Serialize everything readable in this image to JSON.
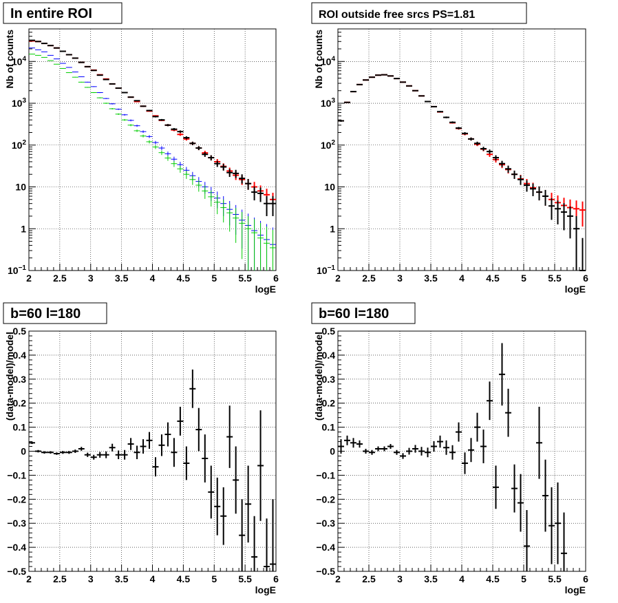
{
  "chart_data": [
    {
      "type": "scatter",
      "title": "In entire ROI",
      "xlabel": "logE",
      "ylabel": "Nb of counts",
      "xlim": [
        2,
        6
      ],
      "ylim": [
        0.1,
        60000
      ],
      "yscale": "log",
      "grid": true,
      "xtick_labels": [
        "2",
        "2.5",
        "3",
        "3.5",
        "4",
        "4.5",
        "5",
        "5.5",
        "6"
      ],
      "ytick_labels": [
        "10⁻¹",
        "1",
        "10",
        "10²",
        "10³",
        "10⁴"
      ],
      "series": [
        {
          "color": "#ff0000",
          "errors": "x-bin",
          "x": [
            2.05,
            2.15,
            2.25,
            2.35,
            2.45,
            2.55,
            2.65,
            2.75,
            2.85,
            2.95,
            3.05,
            3.15,
            3.25,
            3.35,
            3.45,
            3.55,
            3.65,
            3.75,
            3.85,
            3.95,
            4.05,
            4.15,
            4.25,
            4.35,
            4.45,
            4.55,
            4.65,
            4.75,
            4.85,
            4.95,
            5.05,
            5.15,
            5.25,
            5.35,
            5.45,
            5.55,
            5.65,
            5.75,
            5.85,
            5.95
          ],
          "y": [
            31000,
            30000,
            27000,
            24000,
            21000,
            17500,
            14500,
            12000,
            9500,
            7500,
            6200,
            4800,
            3800,
            2900,
            2300,
            1800,
            1400,
            1100,
            850,
            650,
            500,
            390,
            300,
            230,
            180,
            140,
            110,
            85,
            65,
            50,
            40,
            31,
            24,
            19,
            15,
            12,
            10,
            8,
            6.5,
            5
          ]
        },
        {
          "color": "#000000",
          "errors": "xy",
          "x": [
            2.05,
            2.15,
            2.25,
            2.35,
            2.45,
            2.55,
            2.65,
            2.75,
            2.85,
            2.95,
            3.05,
            3.15,
            3.25,
            3.35,
            3.45,
            3.55,
            3.65,
            3.75,
            3.85,
            3.95,
            4.05,
            4.15,
            4.25,
            4.35,
            4.45,
            4.55,
            4.65,
            4.75,
            4.85,
            4.95,
            5.05,
            5.15,
            5.25,
            5.35,
            5.45,
            5.55,
            5.65,
            5.75,
            5.85,
            5.95
          ],
          "y": [
            32000,
            30000,
            27000,
            24000,
            21000,
            17500,
            14500,
            12000,
            9500,
            7500,
            6100,
            4700,
            3700,
            2900,
            2300,
            1800,
            1400,
            1150,
            850,
            670,
            480,
            400,
            300,
            240,
            210,
            150,
            110,
            85,
            60,
            50,
            36,
            30,
            22,
            21,
            16,
            12,
            7.5,
            7,
            4,
            4
          ]
        },
        {
          "color": "#0000ff",
          "errors": "xy",
          "x": [
            2.05,
            2.15,
            2.25,
            2.35,
            2.45,
            2.55,
            2.65,
            2.75,
            2.85,
            2.95,
            3.05,
            3.15,
            3.25,
            3.35,
            3.45,
            3.55,
            3.65,
            3.75,
            3.85,
            3.95,
            4.05,
            4.15,
            4.25,
            4.35,
            4.45,
            4.55,
            4.65,
            4.75,
            4.85,
            4.95,
            5.05,
            5.15,
            5.25,
            5.35,
            5.45,
            5.55,
            5.65,
            5.75,
            5.85,
            5.95
          ],
          "y": [
            21000,
            19000,
            17000,
            14000,
            11500,
            9000,
            7200,
            5600,
            4300,
            3200,
            2500,
            1800,
            1300,
            970,
            720,
            530,
            390,
            290,
            210,
            160,
            115,
            85,
            62,
            46,
            34,
            25,
            18.5,
            13.5,
            10,
            7.3,
            5.4,
            4,
            2.9,
            2.2,
            1.6,
            1.2,
            0.9,
            0.7,
            0.55,
            0.42
          ]
        },
        {
          "color": "#00cc00",
          "errors": "xy",
          "x": [
            2.05,
            2.15,
            2.25,
            2.35,
            2.45,
            2.55,
            2.65,
            2.75,
            2.85,
            2.95,
            3.05,
            3.15,
            3.25,
            3.35,
            3.45,
            3.55,
            3.65,
            3.75,
            3.85,
            3.95,
            4.05,
            4.15,
            4.25,
            4.35,
            4.45,
            4.55,
            4.65,
            4.75,
            4.85,
            4.95,
            5.05,
            5.15,
            5.25,
            5.35,
            5.45,
            5.55,
            5.65,
            5.75,
            5.85,
            5.95
          ],
          "y": [
            15000,
            14000,
            12500,
            10500,
            8600,
            6800,
            5400,
            4200,
            3200,
            2400,
            1800,
            1350,
            1000,
            740,
            550,
            400,
            300,
            220,
            165,
            120,
            90,
            66,
            49,
            36,
            27,
            20,
            15,
            11,
            8,
            5.8,
            4.3,
            3.2,
            2.4,
            1.8,
            1.35,
            1,
            0.8,
            0.6,
            0.45,
            0.35
          ]
        }
      ]
    },
    {
      "type": "scatter",
      "title": "ROI outside free srcs PS=1.81",
      "xlabel": "logE",
      "ylabel": "Nb of counts",
      "xlim": [
        2,
        6
      ],
      "ylim": [
        0.1,
        60000
      ],
      "yscale": "log",
      "grid": true,
      "xtick_labels": [
        "2",
        "2.5",
        "3",
        "3.5",
        "4",
        "4.5",
        "5",
        "5.5",
        "6"
      ],
      "ytick_labels": [
        "10⁻¹",
        "1",
        "10",
        "10²",
        "10³",
        "10⁴"
      ],
      "series": [
        {
          "color": "#ff0000",
          "errors": "x-bin",
          "x": [
            2.05,
            2.15,
            2.25,
            2.35,
            2.45,
            2.55,
            2.65,
            2.75,
            2.85,
            2.95,
            3.05,
            3.15,
            3.25,
            3.35,
            3.45,
            3.55,
            3.65,
            3.75,
            3.85,
            3.95,
            4.05,
            4.15,
            4.25,
            4.35,
            4.45,
            4.55,
            4.65,
            4.75,
            4.85,
            4.95,
            5.05,
            5.15,
            5.25,
            5.35,
            5.45,
            5.55,
            5.65,
            5.75,
            5.85,
            5.95
          ],
          "y": [
            380,
            1050,
            1900,
            2800,
            3600,
            4200,
            4700,
            4800,
            4500,
            3900,
            3200,
            2600,
            2000,
            1500,
            1100,
            830,
            620,
            460,
            340,
            250,
            185,
            140,
            105,
            80,
            60,
            45,
            34,
            26,
            20,
            15.5,
            12,
            9.5,
            7.5,
            6,
            5,
            4.2,
            3.6,
            3.2,
            3,
            2.8
          ]
        },
        {
          "color": "#000000",
          "errors": "xy",
          "x": [
            2.05,
            2.15,
            2.25,
            2.35,
            2.45,
            2.55,
            2.65,
            2.75,
            2.85,
            2.95,
            3.05,
            3.15,
            3.25,
            3.35,
            3.45,
            3.55,
            3.65,
            3.75,
            3.85,
            3.95,
            4.05,
            4.15,
            4.25,
            4.35,
            4.45,
            4.55,
            4.65,
            4.75,
            4.85,
            4.95,
            5.05,
            5.15,
            5.25,
            5.35,
            5.45,
            5.55,
            5.65,
            5.75,
            5.85,
            5.95
          ],
          "y": [
            380,
            1050,
            1900,
            2800,
            3600,
            4200,
            4700,
            4800,
            4500,
            3900,
            3200,
            2600,
            2000,
            1500,
            1100,
            830,
            630,
            460,
            350,
            255,
            190,
            140,
            110,
            82,
            70,
            50,
            36,
            27,
            20,
            15,
            11,
            9,
            7.5,
            6,
            3.5,
            3,
            2.5,
            2,
            1,
            0.1
          ]
        }
      ]
    },
    {
      "type": "scatter",
      "title": "b=60 l=180",
      "xlabel": "logE",
      "ylabel": "(data-model)/model",
      "xlim": [
        2,
        6
      ],
      "ylim": [
        -0.5,
        0.5
      ],
      "grid": true,
      "xtick_labels": [
        "2",
        "2.5",
        "3",
        "3.5",
        "4",
        "4.5",
        "5",
        "5.5",
        "6"
      ],
      "ytick_labels": [
        "-0.5",
        "-0.4",
        "-0.3",
        "-0.2",
        "-0.1",
        "0",
        "0.1",
        "0.2",
        "0.3",
        "0.4",
        "0.5"
      ],
      "series": [
        {
          "color": "#000000",
          "errors": "xy",
          "x": [
            2.05,
            2.15,
            2.25,
            2.35,
            2.45,
            2.55,
            2.65,
            2.75,
            2.85,
            2.95,
            3.05,
            3.15,
            3.25,
            3.35,
            3.45,
            3.55,
            3.65,
            3.75,
            3.85,
            3.95,
            4.05,
            4.15,
            4.25,
            4.35,
            4.45,
            4.55,
            4.65,
            4.75,
            4.85,
            4.95,
            5.05,
            5.15,
            5.25,
            5.35,
            5.45,
            5.55,
            5.65,
            5.75,
            5.85,
            5.95
          ],
          "y": [
            0.035,
            0,
            -0.005,
            -0.005,
            -0.01,
            -0.005,
            -0.005,
            0,
            0.01,
            -0.015,
            -0.025,
            -0.015,
            -0.015,
            0.015,
            -0.015,
            -0.015,
            0.03,
            -0.005,
            0.02,
            0.045,
            -0.065,
            0.025,
            0.07,
            -0.005,
            0.125,
            -0.05,
            0.26,
            0.09,
            -0.03,
            -0.17,
            -0.23,
            -0.27,
            0.06,
            -0.12,
            -0.35,
            -0.22,
            -0.44,
            -0.06,
            -0.48,
            -0.47
          ],
          "err": [
            0.005,
            0.005,
            0.005,
            0.005,
            0.005,
            0.006,
            0.006,
            0.007,
            0.008,
            0.009,
            0.01,
            0.012,
            0.014,
            0.016,
            0.018,
            0.02,
            0.025,
            0.028,
            0.03,
            0.035,
            0.04,
            0.045,
            0.05,
            0.06,
            0.06,
            0.07,
            0.08,
            0.09,
            0.1,
            0.11,
            0.12,
            0.12,
            0.13,
            0.14,
            0.15,
            0.16,
            0.17,
            0.23,
            0.2,
            0.27
          ]
        }
      ]
    },
    {
      "type": "scatter",
      "title": "b=60 l=180",
      "xlabel": "logE",
      "ylabel": "(data-model)/model",
      "xlim": [
        2,
        6
      ],
      "ylim": [
        -0.5,
        0.5
      ],
      "grid": true,
      "xtick_labels": [
        "2",
        "2.5",
        "3",
        "3.5",
        "4",
        "4.5",
        "5",
        "5.5",
        "6"
      ],
      "ytick_labels": [
        "-0.5",
        "-0.4",
        "-0.3",
        "-0.2",
        "-0.1",
        "0",
        "0.1",
        "0.2",
        "0.3",
        "0.4",
        "0.5"
      ],
      "series": [
        {
          "color": "#000000",
          "errors": "xy",
          "x": [
            2.05,
            2.15,
            2.25,
            2.35,
            2.45,
            2.55,
            2.65,
            2.75,
            2.85,
            2.95,
            3.05,
            3.15,
            3.25,
            3.35,
            3.45,
            3.55,
            3.65,
            3.75,
            3.85,
            3.95,
            4.05,
            4.15,
            4.25,
            4.35,
            4.45,
            4.55,
            4.65,
            4.75,
            4.85,
            4.95,
            5.05,
            5.15,
            5.25,
            5.35,
            5.45,
            5.55,
            5.65,
            5.75,
            5.85,
            5.95
          ],
          "y": [
            0.02,
            0.045,
            0.035,
            0.03,
            0,
            -0.005,
            0.01,
            0.01,
            0.02,
            -0.005,
            -0.02,
            0,
            0.01,
            0,
            -0.005,
            0.02,
            0.04,
            0.015,
            -0.005,
            0.08,
            -0.05,
            0.005,
            0.1,
            0.02,
            0.21,
            -0.15,
            0.32,
            0.16,
            -0.155,
            -0.215,
            -0.395,
            null,
            0.035,
            -0.185,
            -0.31,
            -0.3,
            -0.425,
            null,
            null,
            null
          ],
          "err": [
            0.03,
            0.02,
            0.02,
            0.015,
            0.01,
            0.01,
            0.01,
            0.01,
            0.01,
            0.01,
            0.012,
            0.014,
            0.016,
            0.018,
            0.02,
            0.022,
            0.025,
            0.03,
            0.03,
            0.04,
            0.045,
            0.05,
            0.06,
            0.07,
            0.08,
            0.09,
            0.13,
            0.1,
            0.1,
            0.12,
            0.15,
            0.15,
            0.15,
            0.15,
            0.16,
            0.17,
            0.17,
            0.2,
            0.2,
            0.2
          ]
        }
      ]
    }
  ]
}
